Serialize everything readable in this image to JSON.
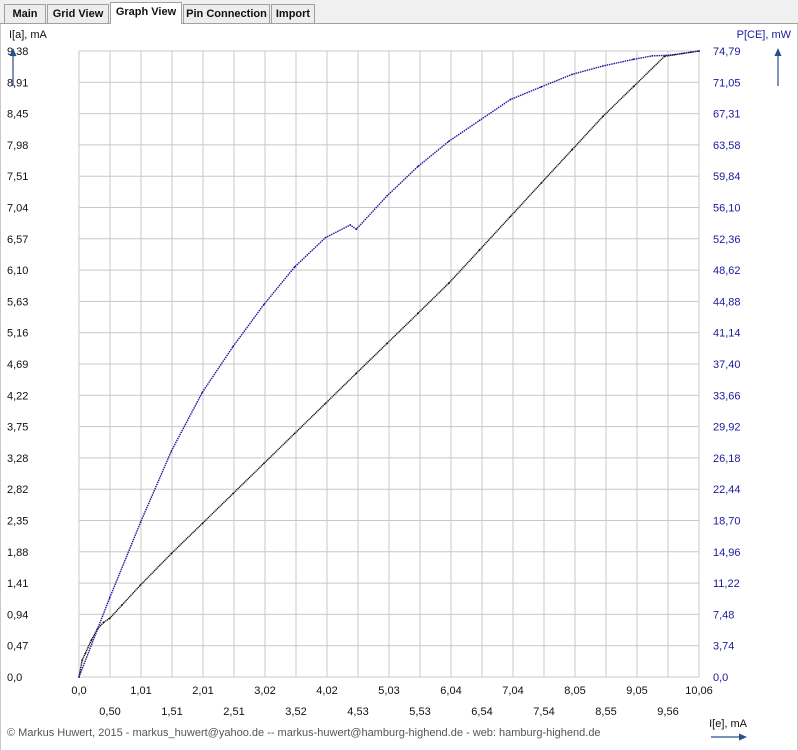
{
  "tabs": [
    {
      "label": "Main",
      "active": false
    },
    {
      "label": "Grid View",
      "active": false
    },
    {
      "label": "Graph View",
      "active": true
    },
    {
      "label": "Pin Connection",
      "active": false
    },
    {
      "label": "Import",
      "active": false
    }
  ],
  "footer": {
    "text": "© Markus Huwert, 2015  -  markus_huwert@yahoo.de  --  markus-huwert@hamburg-highend.de  -  web: hamburg-highend.de"
  },
  "colors": {
    "grid": "#c8c8c8",
    "primary_series": "#111111",
    "secondary_series": "#1a1a9c",
    "axis_arrow": "#26508a"
  },
  "chart_data": {
    "type": "line",
    "xlabel": "I[e], mA",
    "ylabel": "I[a], mA",
    "y2label": "P[CE], mW",
    "xlim": [
      0,
      10.06
    ],
    "ylim": [
      0,
      9.38
    ],
    "y2lim": [
      0,
      74.79
    ],
    "grid": true,
    "x_ticks_upper": [
      "0,0",
      "1,01",
      "2,01",
      "3,02",
      "4,02",
      "5,03",
      "6,04",
      "7,04",
      "8,05",
      "9,05",
      "10,06"
    ],
    "x_ticks_lower": [
      "0,50",
      "1,51",
      "2,51",
      "3,52",
      "4,53",
      "5,53",
      "6,54",
      "7,54",
      "8,55",
      "9,56"
    ],
    "y_ticks_left": [
      "0,0",
      "0,47",
      "0,94",
      "1,41",
      "1,88",
      "2,35",
      "2,82",
      "3,28",
      "3,75",
      "4,22",
      "4,69",
      "5,16",
      "5,63",
      "6,10",
      "6,57",
      "7,04",
      "7,51",
      "7,98",
      "8,45",
      "8,91",
      "9,38"
    ],
    "y_ticks_right": [
      "0,0",
      "3,74",
      "7,48",
      "11,22",
      "14,96",
      "18,70",
      "22,44",
      "26,18",
      "29,92",
      "33,66",
      "37,40",
      "41,14",
      "44,88",
      "48,62",
      "52,36",
      "56,10",
      "59,84",
      "63,58",
      "67,31",
      "71,05",
      "74,79"
    ],
    "series": [
      {
        "name": "I[a], mA",
        "axis": "left",
        "color": "#111111",
        "x": [
          0.0,
          0.05,
          0.1,
          0.2,
          0.3,
          0.4,
          0.5,
          0.7,
          1.0,
          1.5,
          2.0,
          2.5,
          3.0,
          3.5,
          4.0,
          4.5,
          5.0,
          5.5,
          6.0,
          6.5,
          7.0,
          7.5,
          8.0,
          8.5,
          9.0,
          9.5,
          10.06
        ],
        "y": [
          0.0,
          0.25,
          0.35,
          0.55,
          0.72,
          0.82,
          0.88,
          1.08,
          1.38,
          1.85,
          2.3,
          2.75,
          3.2,
          3.65,
          4.1,
          4.55,
          5.0,
          5.45,
          5.9,
          6.4,
          6.9,
          7.4,
          7.9,
          8.4,
          8.85,
          9.3,
          9.38
        ]
      },
      {
        "name": "P[CE], mW",
        "axis": "right",
        "color": "#1a1a9c",
        "x": [
          0.0,
          0.5,
          1.0,
          1.5,
          2.0,
          2.5,
          3.0,
          3.5,
          4.0,
          4.4,
          4.5,
          5.0,
          5.5,
          6.0,
          6.5,
          7.0,
          7.5,
          8.0,
          8.5,
          9.0,
          9.3,
          9.6,
          10.06
        ],
        "y": [
          0.0,
          9.5,
          18.5,
          27.0,
          34.0,
          39.5,
          44.5,
          49.0,
          52.5,
          54.0,
          53.5,
          57.5,
          61.0,
          64.0,
          66.5,
          69.0,
          70.5,
          72.0,
          73.0,
          73.8,
          74.2,
          74.3,
          74.79
        ]
      }
    ]
  }
}
